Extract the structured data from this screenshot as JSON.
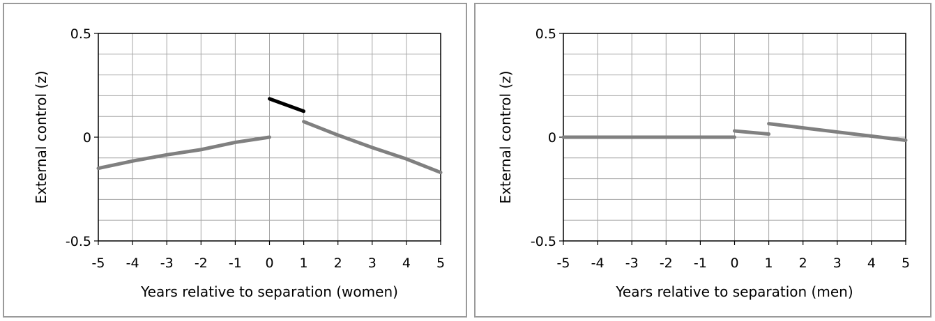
{
  "chart_data": [
    {
      "type": "line",
      "xlabel": "Years relative to separation (women)",
      "ylabel": "External control (z)",
      "xlim": [
        -5,
        5
      ],
      "ylim": [
        -0.5,
        0.5
      ],
      "x_ticks": [
        "-5",
        "-4",
        "-3",
        "-2",
        "-1",
        "0",
        "1",
        "2",
        "3",
        "4",
        "5"
      ],
      "y_ticks": [
        "0.5",
        "0",
        "-0.5"
      ],
      "grid": true,
      "series": [
        {
          "color": "#808080",
          "points": [
            [
              -5,
              -0.15
            ],
            [
              -4,
              -0.115
            ],
            [
              -3,
              -0.085
            ],
            [
              -2,
              -0.06
            ],
            [
              -1,
              -0.025
            ],
            [
              0,
              0.0
            ]
          ]
        },
        {
          "color": "#000000",
          "points": [
            [
              0,
              0.185
            ],
            [
              1,
              0.125
            ]
          ]
        },
        {
          "color": "#808080",
          "points": [
            [
              1,
              0.075
            ],
            [
              2,
              0.01
            ],
            [
              3,
              -0.05
            ],
            [
              4,
              -0.105
            ],
            [
              5,
              -0.17
            ]
          ]
        }
      ]
    },
    {
      "type": "line",
      "xlabel": "Years relative to separation (men)",
      "ylabel": "External control (z)",
      "xlim": [
        -5,
        5
      ],
      "ylim": [
        -0.5,
        0.5
      ],
      "x_ticks": [
        "-5",
        "-4",
        "-3",
        "-2",
        "-1",
        "0",
        "1",
        "2",
        "3",
        "4",
        "5"
      ],
      "y_ticks": [
        "0.5",
        "0",
        "-0.5"
      ],
      "grid": true,
      "series": [
        {
          "color": "#808080",
          "points": [
            [
              -5,
              0.0
            ],
            [
              0,
              0.0
            ]
          ]
        },
        {
          "color": "#808080",
          "points": [
            [
              0,
              0.03
            ],
            [
              1,
              0.015
            ]
          ]
        },
        {
          "color": "#808080",
          "points": [
            [
              1,
              0.065
            ],
            [
              2,
              0.045
            ],
            [
              3,
              0.025
            ],
            [
              4,
              0.005
            ],
            [
              5,
              -0.015
            ]
          ]
        }
      ]
    }
  ]
}
